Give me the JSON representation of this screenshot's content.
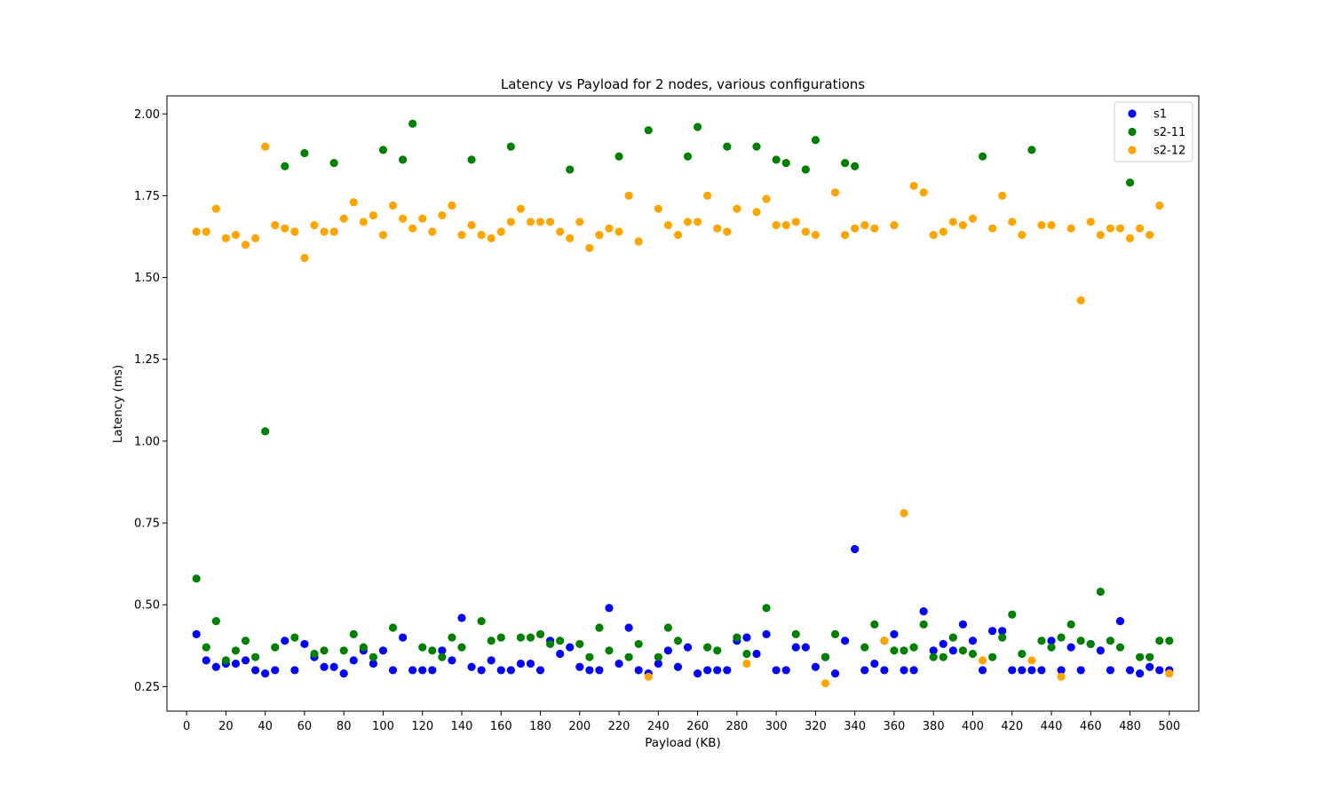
{
  "chart_data": {
    "type": "scatter",
    "title": "Latency vs Payload for 2 nodes, various configurations",
    "xlabel": "Payload (KB)",
    "ylabel": "Latency (ms)",
    "xlim": [
      -10,
      515
    ],
    "ylim": [
      0.175,
      2.055
    ],
    "xticks": [
      0,
      20,
      40,
      60,
      80,
      100,
      120,
      140,
      160,
      180,
      200,
      220,
      240,
      260,
      280,
      300,
      320,
      340,
      360,
      380,
      400,
      420,
      440,
      460,
      480,
      500
    ],
    "yticks": [
      0.25,
      0.5,
      0.75,
      1.0,
      1.25,
      1.5,
      1.75,
      2.0
    ],
    "ytick_labels": [
      "0.25",
      "0.50",
      "0.75",
      "1.00",
      "1.25",
      "1.50",
      "1.75",
      "2.00"
    ],
    "grid": false,
    "legend_position": "top-right",
    "x": [
      5,
      10,
      15,
      20,
      25,
      30,
      35,
      40,
      45,
      50,
      55,
      60,
      65,
      70,
      75,
      80,
      85,
      90,
      95,
      100,
      105,
      110,
      115,
      120,
      125,
      130,
      135,
      140,
      145,
      150,
      155,
      160,
      165,
      170,
      175,
      180,
      185,
      190,
      195,
      200,
      205,
      210,
      215,
      220,
      225,
      230,
      235,
      240,
      245,
      250,
      255,
      260,
      265,
      270,
      275,
      280,
      285,
      290,
      295,
      300,
      305,
      310,
      315,
      320,
      325,
      330,
      335,
      340,
      345,
      350,
      355,
      360,
      365,
      370,
      375,
      380,
      385,
      390,
      395,
      400,
      405,
      410,
      415,
      420,
      425,
      430,
      435,
      440,
      445,
      450,
      455,
      460,
      465,
      470,
      475,
      480,
      485,
      490,
      495,
      500
    ],
    "series": [
      {
        "name": "s1",
        "color": "#0000ff",
        "values": [
          0.41,
          0.33,
          0.31,
          0.32,
          0.32,
          0.33,
          0.3,
          0.29,
          0.3,
          0.39,
          0.3,
          0.38,
          0.34,
          0.31,
          0.31,
          0.29,
          0.33,
          0.36,
          0.32,
          0.36,
          0.3,
          0.4,
          0.3,
          0.3,
          0.3,
          0.36,
          0.33,
          0.46,
          0.31,
          0.3,
          0.33,
          0.3,
          0.3,
          0.32,
          0.32,
          0.3,
          0.39,
          0.35,
          0.37,
          0.31,
          0.3,
          0.3,
          0.49,
          0.32,
          0.43,
          0.3,
          0.29,
          0.32,
          0.36,
          0.31,
          0.37,
          0.29,
          0.3,
          0.3,
          0.3,
          0.39,
          0.4,
          0.35,
          0.41,
          0.3,
          0.3,
          0.37,
          0.37,
          0.31,
          0.34,
          0.29,
          0.39,
          0.67,
          0.3,
          0.32,
          0.3,
          0.41,
          0.3,
          0.3,
          0.48,
          0.36,
          0.38,
          0.36,
          0.44,
          0.39,
          0.3,
          0.42,
          0.42,
          0.3,
          0.3,
          0.3,
          0.3,
          0.39,
          0.3,
          0.37,
          0.3,
          0.38,
          0.36,
          0.3,
          0.45,
          0.3,
          0.29,
          0.31,
          0.3,
          0.3
        ]
      },
      {
        "name": "s2-11",
        "color": "#008000",
        "values": [
          0.58,
          0.37,
          0.45,
          0.33,
          0.36,
          0.39,
          0.34,
          1.03,
          0.37,
          1.84,
          0.4,
          1.88,
          0.35,
          0.36,
          1.85,
          0.36,
          0.41,
          0.37,
          0.34,
          1.89,
          0.43,
          1.86,
          1.97,
          0.37,
          0.36,
          0.34,
          0.4,
          0.37,
          1.86,
          0.45,
          0.39,
          0.4,
          1.9,
          0.4,
          0.4,
          0.41,
          0.38,
          0.39,
          1.83,
          0.38,
          0.34,
          0.43,
          0.36,
          1.87,
          0.34,
          0.38,
          1.95,
          0.34,
          0.43,
          0.39,
          1.87,
          1.96,
          0.37,
          0.36,
          1.9,
          0.4,
          0.35,
          1.9,
          0.49,
          1.86,
          1.85,
          0.41,
          1.83,
          1.92,
          0.34,
          0.41,
          1.85,
          1.84,
          0.37,
          0.44,
          0.39,
          0.36,
          0.36,
          0.37,
          0.44,
          0.34,
          0.34,
          0.4,
          0.36,
          0.35,
          1.87,
          0.34,
          0.4,
          0.47,
          0.35,
          1.89,
          0.39,
          0.37,
          0.4,
          0.44,
          0.39,
          0.38,
          0.54,
          0.39,
          0.37,
          1.79,
          0.34,
          0.34,
          0.39,
          0.39
        ]
      },
      {
        "name": "s2-12",
        "color": "#ffa500",
        "values": [
          1.64,
          1.64,
          1.71,
          1.62,
          1.63,
          1.6,
          1.62,
          1.9,
          1.66,
          1.65,
          1.64,
          1.56,
          1.66,
          1.64,
          1.64,
          1.68,
          1.73,
          1.67,
          1.69,
          1.63,
          1.72,
          1.68,
          1.65,
          1.68,
          1.64,
          1.69,
          1.72,
          1.63,
          1.66,
          1.63,
          1.62,
          1.64,
          1.67,
          1.71,
          1.67,
          1.67,
          1.67,
          1.64,
          1.62,
          1.67,
          1.59,
          1.63,
          1.65,
          1.64,
          1.75,
          1.61,
          0.28,
          1.71,
          1.66,
          1.63,
          1.67,
          1.67,
          1.75,
          1.65,
          1.64,
          1.71,
          0.32,
          1.7,
          1.74,
          1.66,
          1.66,
          1.67,
          1.64,
          1.63,
          0.26,
          1.76,
          1.63,
          1.65,
          1.66,
          1.65,
          0.39,
          1.66,
          0.78,
          1.78,
          1.76,
          1.63,
          1.64,
          1.67,
          1.66,
          1.68,
          0.33,
          1.65,
          1.75,
          1.67,
          1.63,
          0.33,
          1.66,
          1.66,
          0.28,
          1.65,
          1.43,
          1.67,
          1.63,
          1.65,
          1.65,
          1.62,
          1.65,
          1.63,
          1.72,
          0.29
        ]
      }
    ]
  }
}
